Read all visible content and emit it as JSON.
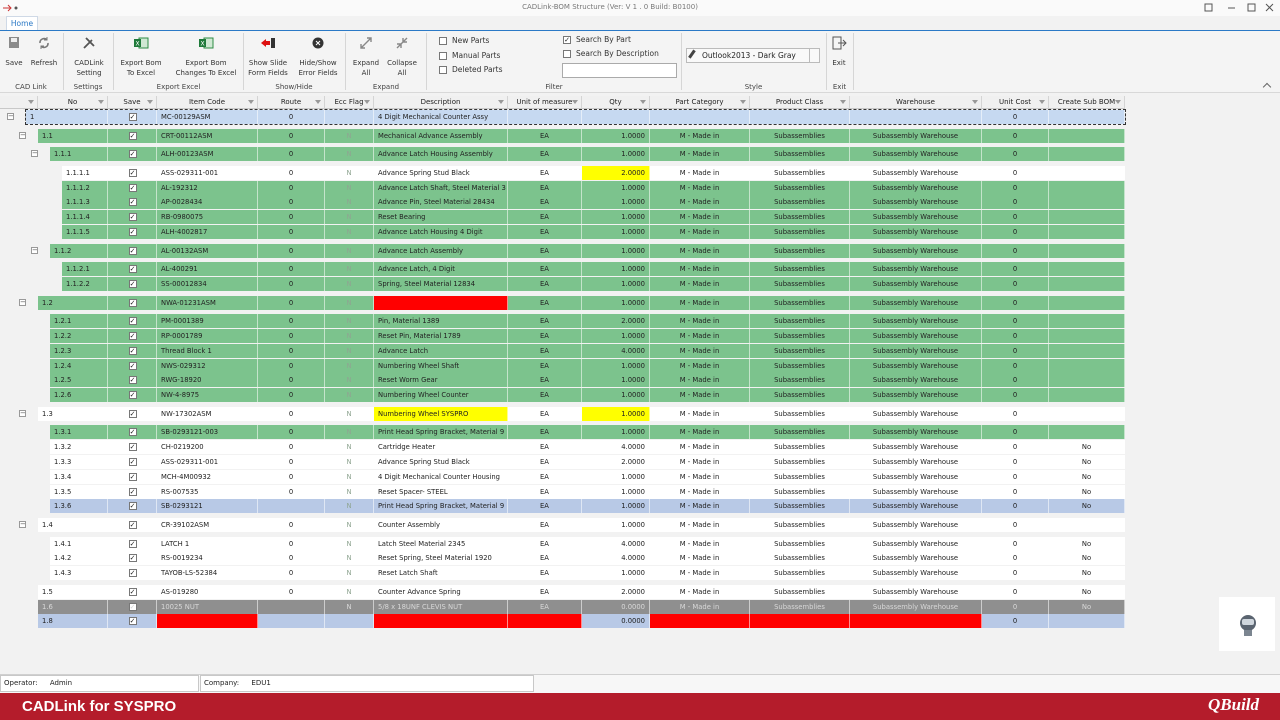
{
  "title_bar": {
    "title": "CADLink-BOM Structure (Ver: V 1 . 0 Build: B0100)"
  },
  "tabs": [
    "Home"
  ],
  "ribbon": {
    "groups": [
      {
        "label": "CAD Link",
        "buttons": [
          [
            "Save"
          ],
          [
            "Refresh"
          ]
        ]
      },
      {
        "label": "Settings",
        "buttons": [
          [
            "CADLink",
            "Setting"
          ]
        ]
      },
      {
        "label": "Export Excel",
        "buttons": [
          [
            "Export Bom",
            "To Excel"
          ],
          [
            "Export Bom",
            "Changes To Excel"
          ]
        ]
      },
      {
        "label": "Show/Hide",
        "buttons": [
          [
            "Show Slide",
            "Form Fields"
          ],
          [
            "Hide/Show",
            "Error Fields"
          ]
        ]
      },
      {
        "label": "Expand",
        "buttons": [
          [
            "Expand",
            "All"
          ],
          [
            "Collapse",
            "All"
          ]
        ]
      },
      {
        "label": "Filter",
        "checkboxes": [
          {
            "label": "New Parts",
            "checked": false
          },
          {
            "label": "Manual Parts",
            "checked": false
          },
          {
            "label": "Deleted Parts",
            "checked": false
          },
          {
            "label": "Search By Part",
            "checked": true
          },
          {
            "label": "Search By Description",
            "checked": false
          }
        ]
      },
      {
        "label": "Style",
        "combo": "Outlook2013 - Dark Gray"
      },
      {
        "label": "Exit",
        "buttons": [
          [
            "Exit"
          ]
        ]
      }
    ]
  },
  "grid": {
    "columns": [
      "No",
      "Save",
      "Item Code",
      "Route",
      "Ecc Flag",
      "Description",
      "Unit of measure",
      "Qty",
      "Part Category",
      "Product Class",
      "Warehouse",
      "Unit Cost",
      "Create Sub BOM"
    ],
    "rows": [
      {
        "cells": [
          "1",
          true,
          "MC-00129ASM",
          "0",
          null,
          "4 Digit Mechanical Counter Assy",
          null,
          null,
          null,
          null,
          null,
          "0",
          null
        ],
        "color": "#c6d9f1"
      },
      {
        "cells": [
          "1.1",
          true,
          "CRT-00112ASM",
          "0",
          "N",
          "Mechanical Advance Assembly",
          "EA",
          "1.0000",
          "M - Made in",
          "Subassemblies",
          "Subassembly Warehouse",
          "0",
          null
        ],
        "color": "#7cc38d"
      },
      {
        "cells": [
          "1.1.1",
          true,
          "ALH-00123ASM",
          "0",
          "N",
          "Advance Latch Housing Assembly",
          "EA",
          "1.0000",
          "M - Made in",
          "Subassemblies",
          "Subassembly Warehouse",
          "0",
          null
        ],
        "color": "#7cc38d"
      },
      {
        "cells": [
          "1.1.1.1",
          true,
          "ASS-029311-001",
          "0",
          "N",
          "Advance Spring Stud Black",
          "EA",
          "2.0000",
          "M - Made in",
          "Subassemblies",
          "Subassembly Warehouse",
          "0",
          null
        ],
        "color": "#ffffff",
        "highlights": [
          {
            "column": 7,
            "color": "#ffff00"
          }
        ]
      },
      {
        "cells": [
          "1.1.1.2",
          true,
          "AL-192312",
          "0",
          "N",
          "Advance Latch Shaft, Steel Material 3",
          "EA",
          "1.0000",
          "M - Made in",
          "Subassemblies",
          "Subassembly Warehouse",
          "0",
          null
        ],
        "color": "#7cc38d"
      },
      {
        "cells": [
          "1.1.1.3",
          true,
          "AP-0028434",
          "0",
          "N",
          "Advance Pin, Steel Material 28434",
          "EA",
          "1.0000",
          "M - Made in",
          "Subassemblies",
          "Subassembly Warehouse",
          "0",
          null
        ],
        "color": "#7cc38d"
      },
      {
        "cells": [
          "1.1.1.4",
          true,
          "RB-0980075",
          "0",
          "N",
          "Reset Bearing",
          "EA",
          "1.0000",
          "M - Made in",
          "Subassemblies",
          "Subassembly Warehouse",
          "0",
          null
        ],
        "color": "#7cc38d"
      },
      {
        "cells": [
          "1.1.1.5",
          true,
          "ALH-4002817",
          "0",
          "N",
          "Advance Latch Housing 4 Digit",
          "EA",
          "1.0000",
          "M - Made in",
          "Subassemblies",
          "Subassembly Warehouse",
          "0",
          null
        ],
        "color": "#7cc38d"
      },
      {
        "cells": [
          "1.1.2",
          true,
          "AL-00132ASM",
          "0",
          "N",
          "Advance Latch Assembly",
          "EA",
          "1.0000",
          "M - Made in",
          "Subassemblies",
          "Subassembly Warehouse",
          "0",
          null
        ],
        "color": "#7cc38d"
      },
      {
        "cells": [
          "1.1.2.1",
          true,
          "AL-400291",
          "0",
          "N",
          "Advance Latch, 4 Digit",
          "EA",
          "1.0000",
          "M - Made in",
          "Subassemblies",
          "Subassembly Warehouse",
          "0",
          null
        ],
        "color": "#7cc38d"
      },
      {
        "cells": [
          "1.1.2.2",
          true,
          "SS-00012834",
          "0",
          "N",
          "Spring, Steel Material 12834",
          "EA",
          "1.0000",
          "M - Made in",
          "Subassemblies",
          "Subassembly Warehouse",
          "0",
          null
        ],
        "color": "#7cc38d"
      },
      {
        "cells": [
          "1.2",
          true,
          "NWA-01231ASM",
          "0",
          "N",
          null,
          "EA",
          "1.0000",
          "M - Made in",
          "Subassemblies",
          "Subassembly Warehouse",
          "0",
          null
        ],
        "color": "#7cc38d",
        "highlights": [
          {
            "column": 5,
            "color": "#ff0000"
          }
        ]
      },
      {
        "cells": [
          "1.2.1",
          true,
          "PM-0001389",
          "0",
          "N",
          "Pin, Material 1389",
          "EA",
          "2.0000",
          "M - Made in",
          "Subassemblies",
          "Subassembly Warehouse",
          "0",
          null
        ],
        "color": "#7cc38d"
      },
      {
        "cells": [
          "1.2.2",
          true,
          "RP-0001789",
          "0",
          "N",
          "Reset Pin, Material 1789",
          "EA",
          "1.0000",
          "M - Made in",
          "Subassemblies",
          "Subassembly Warehouse",
          "0",
          null
        ],
        "color": "#7cc38d"
      },
      {
        "cells": [
          "1.2.3",
          true,
          "Thread Block 1",
          "0",
          "N",
          "Advance Latch",
          "EA",
          "4.0000",
          "M - Made in",
          "Subassemblies",
          "Subassembly Warehouse",
          "0",
          null
        ],
        "color": "#7cc38d"
      },
      {
        "cells": [
          "1.2.4",
          true,
          "NWS-029312",
          "0",
          "N",
          "Numbering Wheel Shaft",
          "EA",
          "1.0000",
          "M - Made in",
          "Subassemblies",
          "Subassembly Warehouse",
          "0",
          null
        ],
        "color": "#7cc38d"
      },
      {
        "cells": [
          "1.2.5",
          true,
          "RWG-18920",
          "0",
          "N",
          "Reset Worm Gear",
          "EA",
          "1.0000",
          "M - Made in",
          "Subassemblies",
          "Subassembly Warehouse",
          "0",
          null
        ],
        "color": "#7cc38d"
      },
      {
        "cells": [
          "1.2.6",
          true,
          "NW-4-8975",
          "0",
          "N",
          "Numbering Wheel Counter",
          "EA",
          "1.0000",
          "M - Made in",
          "Subassemblies",
          "Subassembly Warehouse",
          "0",
          null
        ],
        "color": "#7cc38d"
      },
      {
        "cells": [
          "1.3",
          true,
          "NW-17302ASM",
          "0",
          "N",
          "Numbering Wheel SYSPRO",
          "EA",
          "1.0000",
          "M - Made in",
          "Subassemblies",
          "Subassembly Warehouse",
          "0",
          null
        ],
        "color": "#ffffff",
        "highlights": [
          {
            "column": 5,
            "color": "#ffff00"
          },
          {
            "column": 7,
            "color": "#ffff00"
          }
        ]
      },
      {
        "cells": [
          "1.3.1",
          true,
          "SB-0293121-003",
          "0",
          "N",
          "Print Head Spring Bracket, Material 9",
          "EA",
          "1.0000",
          "M - Made in",
          "Subassemblies",
          "Subassembly Warehouse",
          "0",
          null
        ],
        "color": "#7cc38d"
      },
      {
        "cells": [
          "1.3.2",
          true,
          "CH-0219200",
          "0",
          "N",
          "Cartridge Heater",
          "EA",
          "4.0000",
          "M - Made in",
          "Subassemblies",
          "Subassembly Warehouse",
          "0",
          "No"
        ],
        "color": "#ffffff"
      },
      {
        "cells": [
          "1.3.3",
          true,
          "ASS-029311-001",
          "0",
          "N",
          "Advance Spring Stud Black",
          "EA",
          "2.0000",
          "M - Made in",
          "Subassemblies",
          "Subassembly Warehouse",
          "0",
          "No"
        ],
        "color": "#ffffff"
      },
      {
        "cells": [
          "1.3.4",
          true,
          "MCH-4M00932",
          "0",
          "N",
          "4 Digit Mechanical Counter Housing",
          "EA",
          "1.0000",
          "M - Made in",
          "Subassemblies",
          "Subassembly Warehouse",
          "0",
          "No"
        ],
        "color": "#ffffff"
      },
      {
        "cells": [
          "1.3.5",
          true,
          "RS-007535",
          "0",
          "N",
          "Reset Spacer- STEEL",
          "EA",
          "1.0000",
          "M - Made in",
          "Subassemblies",
          "Subassembly Warehouse",
          "0",
          "No"
        ],
        "color": "#ffffff"
      },
      {
        "cells": [
          "1.3.6",
          true,
          "SB-0293121",
          null,
          "N",
          "Print Head Spring Bracket, Material 9",
          "EA",
          "1.0000",
          "M - Made in",
          "Subassemblies",
          "Subassembly Warehouse",
          "0",
          "No"
        ],
        "color": "#b8c9e6"
      },
      {
        "cells": [
          "1.4",
          true,
          "CR-39102ASM",
          "0",
          "N",
          "Counter Assembly",
          "EA",
          "1.0000",
          "M - Made in",
          "Subassemblies",
          "Subassembly Warehouse",
          "0",
          null
        ],
        "color": "#ffffff"
      },
      {
        "cells": [
          "1.4.1",
          true,
          "LATCH 1",
          "0",
          "N",
          "Latch Steel Material 2345",
          "EA",
          "4.0000",
          "M - Made in",
          "Subassemblies",
          "Subassembly Warehouse",
          "0",
          "No"
        ],
        "color": "#ffffff"
      },
      {
        "cells": [
          "1.4.2",
          true,
          "RS-0019234",
          "0",
          "N",
          "Reset Spring, Steel Material 1920",
          "EA",
          "4.0000",
          "M - Made in",
          "Subassemblies",
          "Subassembly Warehouse",
          "0",
          "No"
        ],
        "color": "#ffffff"
      },
      {
        "cells": [
          "1.4.3",
          true,
          "TAYOB-LS-52384",
          "0",
          "N",
          "Reset Latch Shaft",
          "EA",
          "1.0000",
          "M - Made in",
          "Subassemblies",
          "Subassembly Warehouse",
          "0",
          "No"
        ],
        "color": "#ffffff"
      },
      {
        "cells": [
          "1.5",
          true,
          "AS-019280",
          "0",
          "N",
          "Counter Advance Spring",
          "EA",
          "2.0000",
          "M - Made in",
          "Subassemblies",
          "Subassembly Warehouse",
          "0",
          "No"
        ],
        "color": "#ffffff"
      },
      {
        "cells": [
          "1.6",
          true,
          "10025 NUT",
          null,
          "N",
          "5/8 x 18UNF CLEVIS NUT",
          "EA",
          "0.0000",
          "M - Made in",
          "Subassemblies",
          "Subassembly Warehouse",
          "0",
          "No"
        ],
        "color": "#8f8f8f"
      },
      {
        "cells": [
          "1.8",
          true,
          null,
          null,
          null,
          null,
          null,
          "0.0000",
          null,
          null,
          null,
          "0",
          null
        ],
        "color": "#b8c9e6",
        "highlights": [
          {
            "column": 2,
            "color": "#ff0000"
          },
          {
            "column": 5,
            "color": "#ff0000"
          },
          {
            "column": 6,
            "color": "#ff0000"
          },
          {
            "column": 8,
            "color": "#ff0000"
          },
          {
            "column": 9,
            "color": "#ff0000"
          },
          {
            "column": 10,
            "color": "#ff0000"
          }
        ]
      }
    ]
  },
  "status_bar": {
    "operator_label": "Operator:",
    "operator": "Admin",
    "company_label": "Company:",
    "company": "EDU1"
  },
  "footer": {
    "app": "CADLink for SYSPRO",
    "brand": "QBuild"
  }
}
